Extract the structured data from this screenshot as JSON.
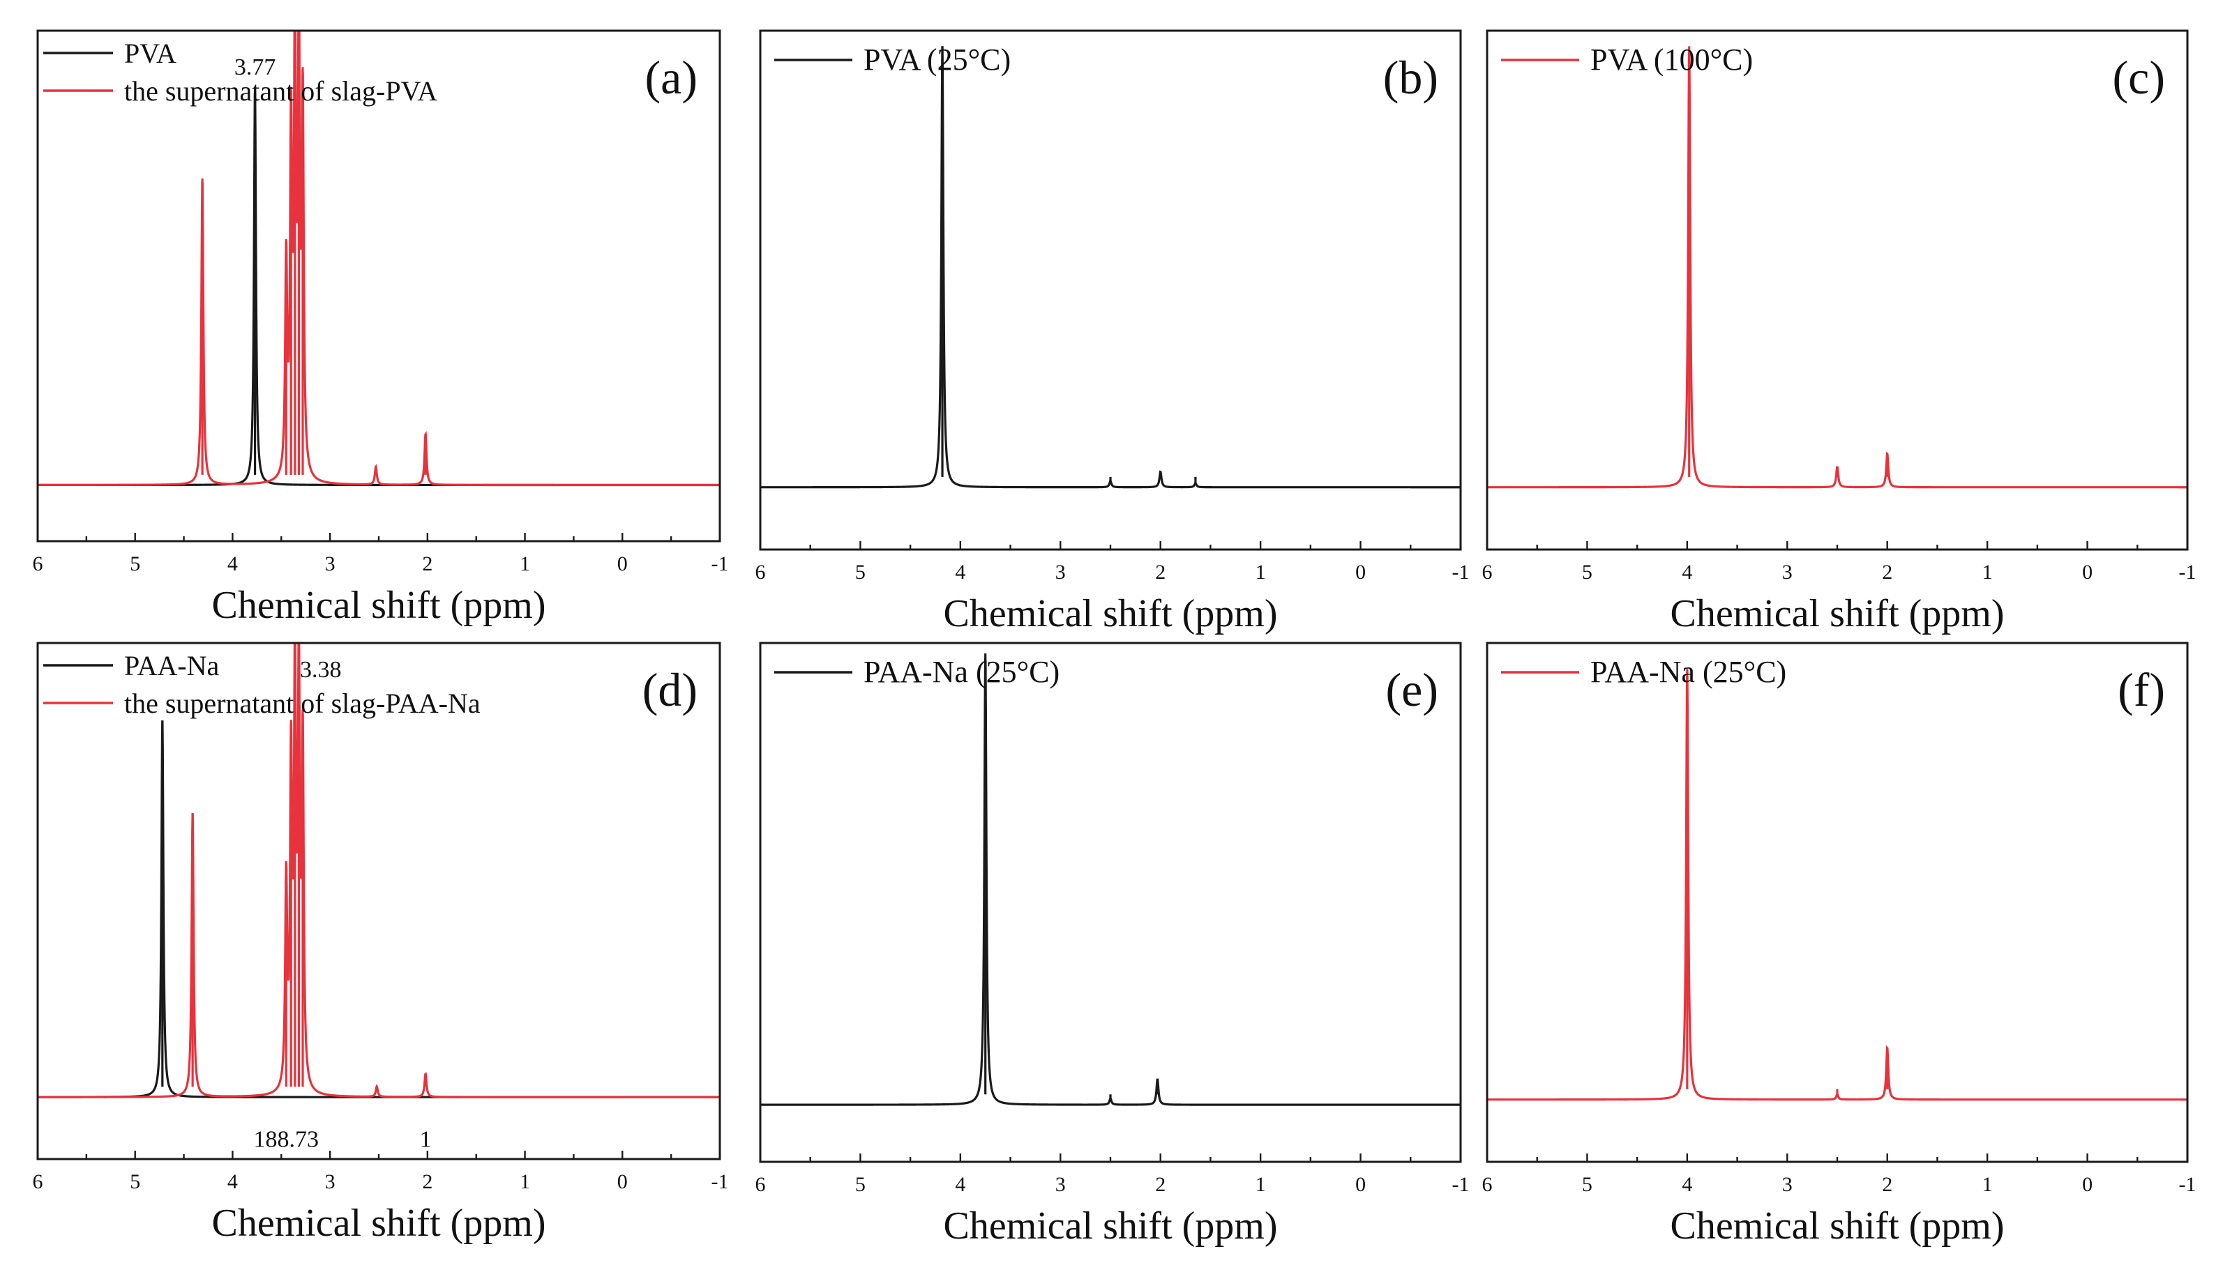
{
  "figure": {
    "description_colors": {
      "black": "#1a1a1a",
      "red": "#e8323c"
    }
  },
  "chart_data": [
    {
      "type": "line",
      "panel": "(a)",
      "title": "",
      "xlabel": "Chemical shift (ppm)",
      "ylabel": "",
      "xlim": [
        6,
        -1
      ],
      "x_ticks": [
        "6",
        "5",
        "4",
        "3",
        "2",
        "1",
        "0",
        "-1"
      ],
      "legend": [
        {
          "label": "PVA",
          "color": "#1a1a1a"
        },
        {
          "label": "the supernatant of slag-PVA",
          "color": "#e8323c"
        }
      ],
      "annotations": [
        {
          "text": "3.77",
          "x": 3.77,
          "y": 0.93
        }
      ],
      "series": [
        {
          "name": "PVA",
          "color": "#1a1a1a",
          "baseline": 0.11,
          "peaks": [
            {
              "x": 3.77,
              "h": 0.78
            }
          ]
        },
        {
          "name": "the supernatant of slag-PVA",
          "color": "#e8323c",
          "baseline": 0.11,
          "peaks": [
            {
              "x": 4.31,
              "h": 0.6
            },
            {
              "x": 3.45,
              "h": 0.42
            },
            {
              "x": 3.4,
              "h": 0.66
            },
            {
              "x": 3.36,
              "h": 0.86
            },
            {
              "x": 3.32,
              "h": 0.86
            },
            {
              "x": 3.28,
              "h": 0.72
            },
            {
              "x": 2.53,
              "h": 0.035
            },
            {
              "x": 2.02,
              "h": 0.1
            }
          ]
        }
      ]
    },
    {
      "type": "line",
      "panel": "(b)",
      "title": "",
      "xlabel": "Chemical shift (ppm)",
      "ylabel": "",
      "xlim": [
        6,
        -1
      ],
      "x_ticks": [
        "6",
        "5",
        "4",
        "3",
        "2",
        "1",
        "0",
        "-1"
      ],
      "legend": [
        {
          "label": "PVA (25°C)",
          "color": "#1a1a1a"
        }
      ],
      "annotations": [],
      "series": [
        {
          "name": "PVA (25°C)",
          "color": "#1a1a1a",
          "baseline": 0.12,
          "peaks": [
            {
              "x": 4.18,
              "h": 0.85
            },
            {
              "x": 2.5,
              "h": 0.012
            },
            {
              "x": 2.0,
              "h": 0.03
            },
            {
              "x": 1.65,
              "h": 0.008
            }
          ]
        }
      ]
    },
    {
      "type": "line",
      "panel": "(c)",
      "title": "",
      "xlabel": "Chemical shift (ppm)",
      "ylabel": "",
      "xlim": [
        6,
        -1
      ],
      "x_ticks": [
        "6",
        "5",
        "4",
        "3",
        "2",
        "1",
        "0",
        "-1"
      ],
      "legend": [
        {
          "label": "PVA (100°C)",
          "color": "#e8323c"
        }
      ],
      "annotations": [],
      "series": [
        {
          "name": "PVA (100°C)",
          "color": "#e8323c",
          "baseline": 0.12,
          "peaks": [
            {
              "x": 3.98,
              "h": 0.85
            },
            {
              "x": 2.5,
              "h": 0.04
            },
            {
              "x": 2.0,
              "h": 0.065
            }
          ]
        }
      ]
    },
    {
      "type": "line",
      "panel": "(d)",
      "title": "",
      "xlabel": "Chemical shift (ppm)",
      "ylabel": "",
      "xlim": [
        6,
        -1
      ],
      "x_ticks": [
        "6",
        "5",
        "4",
        "3",
        "2",
        "1",
        "0",
        "-1"
      ],
      "legend": [
        {
          "label": "PAA-Na",
          "color": "#1a1a1a"
        },
        {
          "label": "the supernatant of slag-PAA-Na",
          "color": "#e8323c"
        }
      ],
      "annotations": [
        {
          "text": "3.38",
          "x": 3.38,
          "y": 0.95
        },
        {
          "text": "188.73",
          "x": 3.45,
          "y": 0.04
        },
        {
          "text": "1",
          "x": 2.02,
          "y": 0.04
        }
      ],
      "series": [
        {
          "name": "PAA-Na",
          "color": "#1a1a1a",
          "baseline": 0.12,
          "peaks": [
            {
              "x": 4.72,
              "h": 0.73
            }
          ]
        },
        {
          "name": "the supernatant of slag-PAA-Na",
          "color": "#e8323c",
          "baseline": 0.12,
          "peaks": [
            {
              "x": 4.41,
              "h": 0.55
            },
            {
              "x": 3.45,
              "h": 0.4
            },
            {
              "x": 3.4,
              "h": 0.62
            },
            {
              "x": 3.36,
              "h": 0.79
            },
            {
              "x": 3.32,
              "h": 0.79
            },
            {
              "x": 3.28,
              "h": 0.66
            },
            {
              "x": 2.52,
              "h": 0.02
            },
            {
              "x": 2.02,
              "h": 0.045
            }
          ]
        }
      ]
    },
    {
      "type": "line",
      "panel": "(e)",
      "title": "",
      "xlabel": "Chemical shift (ppm)",
      "ylabel": "",
      "xlim": [
        6,
        -1
      ],
      "x_ticks": [
        "6",
        "5",
        "4",
        "3",
        "2",
        "1",
        "0",
        "-1"
      ],
      "legend": [
        {
          "label": "PAA-Na (25°C)",
          "color": "#1a1a1a"
        }
      ],
      "annotations": [],
      "series": [
        {
          "name": "PAA-Na (25°C)",
          "color": "#1a1a1a",
          "baseline": 0.11,
          "peaks": [
            {
              "x": 3.75,
              "h": 0.87
            },
            {
              "x": 2.5,
              "h": 0.012
            },
            {
              "x": 2.03,
              "h": 0.05
            }
          ]
        }
      ]
    },
    {
      "type": "line",
      "panel": "(f)",
      "title": "",
      "xlabel": "Chemical shift (ppm)",
      "ylabel": "",
      "xlim": [
        6,
        -1
      ],
      "x_ticks": [
        "6",
        "5",
        "4",
        "3",
        "2",
        "1",
        "0",
        "-1"
      ],
      "legend": [
        {
          "label": "PAA-Na (25°C)",
          "color": "#e8323c"
        }
      ],
      "annotations": [],
      "series": [
        {
          "name": "PAA-Na (25°C)",
          "color": "#e8323c",
          "baseline": 0.12,
          "peaks": [
            {
              "x": 4.0,
              "h": 0.83
            },
            {
              "x": 2.5,
              "h": 0.01
            },
            {
              "x": 2.0,
              "h": 0.1
            }
          ]
        }
      ]
    }
  ]
}
